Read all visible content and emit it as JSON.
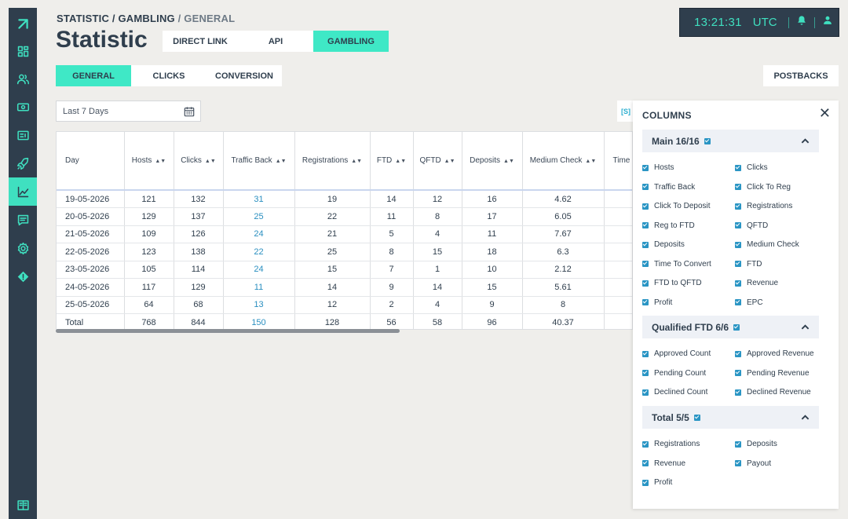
{
  "breadcrumb": {
    "part1": "STATISTIC / GAMBLING",
    "part2": " / GENERAL"
  },
  "page_title": "Statistic",
  "top_tabs": [
    {
      "label": "DIRECT LINK",
      "active": false
    },
    {
      "label": "API",
      "active": false
    },
    {
      "label": "GAMBLING",
      "active": true
    }
  ],
  "clock": {
    "time": "13:21:31",
    "timezone": "UTC"
  },
  "sub_tabs": [
    {
      "label": "GENERAL",
      "active": true
    },
    {
      "label": "CLICKS",
      "active": false
    },
    {
      "label": "CONVERSION",
      "active": false
    }
  ],
  "postbacks_label": "POSTBACKS",
  "date_filter": {
    "value": "Last 7 Days"
  },
  "mini_button_label": "[S]",
  "table": {
    "columns": [
      "Day",
      "Hosts",
      "Clicks",
      "Traffic Back",
      "Registrations",
      "FTD",
      "QFTD",
      "Deposits",
      "Medium Check",
      "Time"
    ],
    "rows": [
      [
        "19-05-2026",
        "121",
        "132",
        "31",
        "19",
        "14",
        "12",
        "16",
        "4.62",
        ""
      ],
      [
        "20-05-2026",
        "129",
        "137",
        "25",
        "22",
        "11",
        "8",
        "17",
        "6.05",
        ""
      ],
      [
        "21-05-2026",
        "109",
        "126",
        "24",
        "21",
        "5",
        "4",
        "11",
        "7.67",
        ""
      ],
      [
        "22-05-2026",
        "123",
        "138",
        "22",
        "25",
        "8",
        "15",
        "18",
        "6.3",
        ""
      ],
      [
        "23-05-2026",
        "105",
        "114",
        "24",
        "15",
        "7",
        "1",
        "10",
        "2.12",
        ""
      ],
      [
        "24-05-2026",
        "117",
        "129",
        "11",
        "14",
        "9",
        "14",
        "15",
        "5.61",
        ""
      ],
      [
        "25-05-2026",
        "64",
        "68",
        "13",
        "12",
        "2",
        "4",
        "9",
        "8",
        ""
      ],
      [
        "Total",
        "768",
        "844",
        "150",
        "128",
        "56",
        "58",
        "96",
        "40.37",
        ""
      ]
    ]
  },
  "columns_panel": {
    "title": "COLUMNS",
    "groups": [
      {
        "title": "Main 16/16",
        "items": [
          "Hosts",
          "Clicks",
          "Traffic Back",
          "Click To Reg",
          "Click To Deposit",
          "Registrations",
          "Reg to FTD",
          "QFTD",
          "Deposits",
          "Medium Check",
          "Time To Convert",
          "FTD",
          "FTD to QFTD",
          "Revenue",
          "Profit",
          "EPC"
        ]
      },
      {
        "title": "Qualified FTD 6/6",
        "items": [
          "Approved Count",
          "Approved Revenue",
          "Pending Count",
          "Pending Revenue",
          "Declined Count",
          "Declined Revenue"
        ]
      },
      {
        "title": "Total 5/5",
        "items": [
          "Registrations",
          "Deposits",
          "Revenue",
          "Payout",
          "Profit"
        ]
      }
    ]
  },
  "colors": {
    "accent": "#3fe8c6",
    "sidebar": "#2f3e4d",
    "link": "#2a8fc0",
    "check": "#2a95c4"
  }
}
